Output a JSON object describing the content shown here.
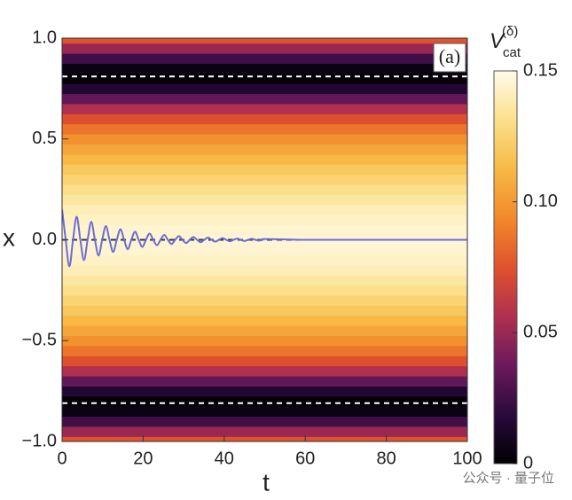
{
  "chart_data": {
    "type": "heatmap",
    "ylabel": "x",
    "xlabel": "t",
    "panel_label": "(a)",
    "xlim": [
      0,
      100
    ],
    "xticks": [
      0,
      20,
      40,
      60,
      80,
      100
    ],
    "ylim": [
      -1,
      1
    ],
    "yticks": [
      {
        "value": 1,
        "label": "1.0"
      },
      {
        "value": 0.5,
        "label": "0.5"
      },
      {
        "value": 0,
        "label": "0.0"
      },
      {
        "value": -0.5,
        "label": "−0.5"
      },
      {
        "value": -1,
        "label": "−1.0"
      }
    ],
    "heatmap": {
      "x": [
        -1,
        -0.95,
        -0.9,
        -0.85,
        -0.8,
        -0.75,
        -0.7,
        -0.65,
        -0.6,
        -0.55,
        -0.5,
        -0.45,
        -0.4,
        -0.35,
        -0.3,
        -0.25,
        -0.2,
        -0.15,
        -0.1,
        -0.05,
        0,
        0.05,
        0.1,
        0.15,
        0.2,
        0.25,
        0.3,
        0.35,
        0.4,
        0.45,
        0.5,
        0.55,
        0.6,
        0.65,
        0.7,
        0.75,
        0.8,
        0.85,
        0.9,
        0.95,
        1
      ],
      "values": [
        0.075,
        0.05,
        0.025,
        0.005,
        0.002,
        0.015,
        0.035,
        0.056,
        0.074,
        0.087,
        0.097,
        0.105,
        0.112,
        0.119,
        0.125,
        0.131,
        0.136,
        0.14,
        0.143,
        0.145,
        0.146,
        0.145,
        0.143,
        0.14,
        0.136,
        0.131,
        0.125,
        0.119,
        0.112,
        0.105,
        0.097,
        0.087,
        0.074,
        0.056,
        0.035,
        0.015,
        0.002,
        0.005,
        0.025,
        0.05,
        0.075
      ]
    },
    "colormap": [
      "#000004",
      "#2a0a3c",
      "#6b1a5c",
      "#b0304f",
      "#e0522d",
      "#f2892a",
      "#f7b945",
      "#fbe08a",
      "#fffbea"
    ],
    "colorbar_label": {
      "base": "V",
      "sub": "cat",
      "sup": "(δ)"
    },
    "clim": [
      0,
      0.15
    ],
    "cticks": [
      0,
      0.05,
      {
        "value": 0.1,
        "label": "0.10"
      },
      0.15
    ],
    "reference_lines": [
      {
        "y": 0.81,
        "color": "#ffffff"
      },
      {
        "y": -0.81,
        "color": "#ffffff"
      },
      {
        "y": 0,
        "color": "#333333"
      }
    ],
    "line": {
      "color": "#6b6bd6",
      "x": [
        0,
        0.9,
        1.8,
        2.7,
        3.6,
        4.5,
        5.4,
        6.3,
        7.2,
        8.1,
        9,
        9.9,
        10.8,
        11.7,
        12.6,
        13.5,
        14.4,
        15.3,
        16.2,
        17.1,
        18,
        18.9,
        19.8,
        20.7,
        21.6,
        22.5,
        23.4,
        24.3,
        25.2,
        26.1,
        27,
        27.9,
        28.8,
        29.7,
        30.6,
        31.5,
        32.4,
        33.3,
        34.2,
        35.1,
        36,
        36.9,
        37.8,
        38.7,
        39.6,
        40.5,
        41.4,
        42.3,
        43.2,
        44.1,
        45,
        45.9,
        46.8,
        47.7,
        48.6,
        49.5,
        50.4,
        60,
        70,
        80,
        90,
        100
      ],
      "values": [
        0.15,
        0,
        -0.132,
        0,
        0.115,
        0,
        -0.101,
        0,
        0.089,
        0,
        -0.078,
        0,
        0.068,
        0,
        -0.06,
        0,
        0.052,
        0,
        -0.046,
        0,
        0.04,
        0,
        -0.035,
        0,
        0.031,
        0,
        -0.027,
        0,
        0.024,
        0,
        -0.021,
        0,
        0.018,
        0,
        -0.016,
        0,
        0.014,
        0,
        -0.012,
        0,
        0.011,
        0,
        -0.009,
        0,
        0.008,
        0,
        -0.007,
        0,
        0.006,
        0,
        -0.006,
        0,
        0.005,
        0,
        -0.004,
        0,
        0.004,
        0,
        0,
        0,
        0,
        0
      ]
    },
    "watermark": "公众号 · 量子位"
  }
}
